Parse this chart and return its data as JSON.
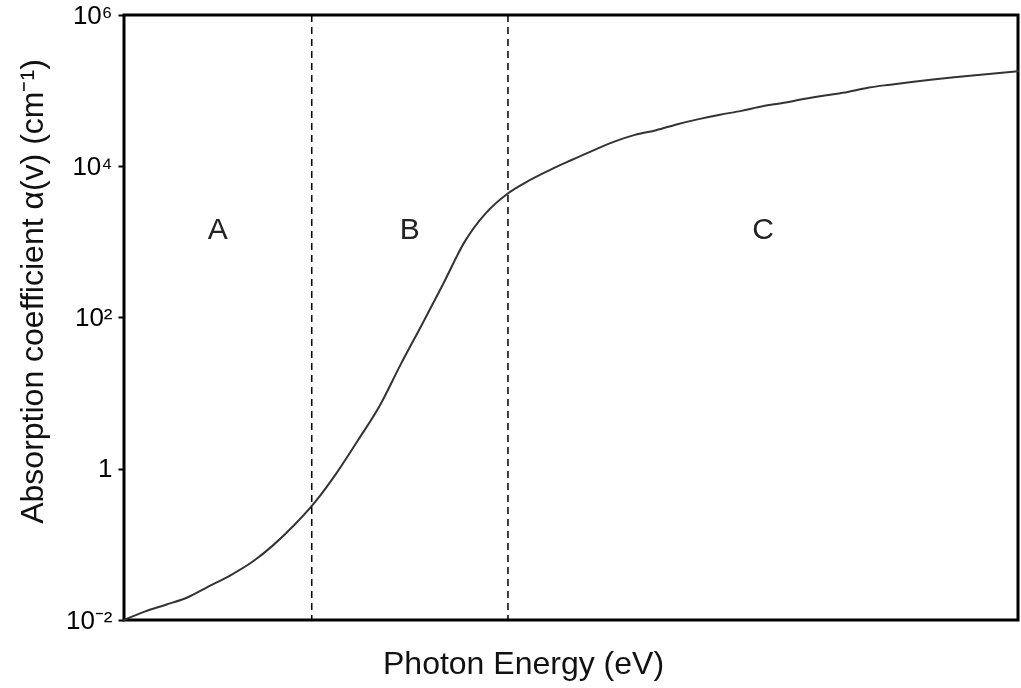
{
  "chart_data": {
    "type": "line",
    "xlabel": "Photon Energy (eV)",
    "ylabel": "Absorption coefficient α(v) (cm⁻¹)",
    "categories": [
      null,
      null,
      null,
      null,
      null,
      null,
      null,
      null,
      null,
      null,
      null,
      null,
      null,
      null,
      null,
      null,
      null,
      null,
      null,
      null,
      null,
      null,
      null,
      null,
      null,
      null,
      null,
      null,
      null,
      null,
      null,
      null,
      null,
      null,
      null,
      null,
      null,
      null,
      null,
      null,
      null,
      null,
      null
    ],
    "series": [
      {
        "color": "#333333",
        "values": [
          0.01,
          0.013,
          0.016,
          0.02,
          0.028,
          0.039,
          0.058,
          0.097,
          0.18,
          0.37,
          0.89,
          2.4,
          6.7,
          24,
          81,
          280,
          1000,
          2400,
          4300,
          6400,
          8900,
          12000,
          16000,
          21000,
          26000,
          30000,
          36000,
          42000,
          48000,
          54000,
          62000,
          69000,
          78000,
          87000,
          96000,
          110000,
          120000,
          130000,
          140000,
          150000,
          160000,
          170000,
          180000
        ]
      }
    ],
    "ylim": [
      0.01,
      1000000
    ],
    "yticks": [
      {
        "value": 0.01,
        "label": "10⁻²"
      },
      1,
      {
        "value": 100,
        "label": "10²"
      },
      {
        "value": 10000,
        "label": "10⁴"
      },
      {
        "value": 1000000,
        "label": "10⁶"
      }
    ],
    "log": true,
    "tick_labels": "y",
    "annotations": [
      "A",
      "B",
      "C"
    ]
  }
}
